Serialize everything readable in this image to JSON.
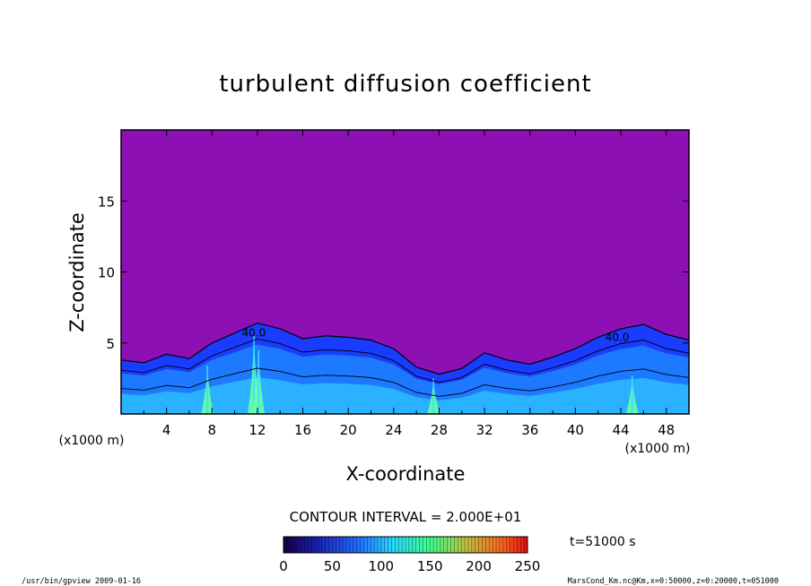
{
  "chart_data": {
    "type": "heatmap",
    "title": "turbulent diffusion coefficient",
    "xlabel": "X-coordinate",
    "ylabel": "Z-coordinate",
    "x_unit": "(x1000 m)",
    "y_unit": "(x1000 m)",
    "xlim": [
      0,
      50
    ],
    "ylim": [
      0,
      20
    ],
    "x_ticks": [
      4,
      8,
      12,
      16,
      20,
      24,
      28,
      32,
      36,
      40,
      44,
      48
    ],
    "y_ticks": [
      5,
      10,
      15
    ],
    "contour_interval_text": "CONTOUR INTERVAL = 2.000E+01",
    "contour_labels": [
      "40.0",
      "40.0"
    ],
    "time_label": "t=51000 s",
    "colorbar": {
      "min": 0,
      "max": 250,
      "ticks": [
        0,
        50,
        100,
        150,
        200,
        250
      ]
    },
    "background_value": 0,
    "layer_top_profile": {
      "x": [
        0,
        2,
        4,
        6,
        8,
        10,
        12,
        14,
        16,
        18,
        20,
        22,
        24,
        26,
        28,
        30,
        32,
        34,
        36,
        38,
        40,
        42,
        44,
        46,
        48,
        50
      ],
      "z": [
        3.8,
        3.6,
        4.2,
        3.9,
        5.0,
        5.7,
        6.4,
        6.0,
        5.3,
        5.5,
        5.4,
        5.2,
        4.6,
        3.3,
        2.8,
        3.2,
        4.3,
        3.8,
        3.5,
        4.0,
        4.6,
        5.4,
        6.0,
        6.3,
        5.6,
        5.2
      ]
    },
    "plumes": [
      {
        "x": 7.6,
        "z_top": 3.4,
        "value": 140
      },
      {
        "x": 11.7,
        "z_top": 5.5,
        "value": 150
      },
      {
        "x": 12.1,
        "z_top": 4.5,
        "value": 110
      },
      {
        "x": 27.5,
        "z_top": 2.5,
        "value": 120
      },
      {
        "x": 45.0,
        "z_top": 2.7,
        "value": 130
      }
    ],
    "colors": {
      "background": "#8c10b4",
      "layer_base": "#1a3cff",
      "layer_mid": "#1f84ff",
      "layer_high": "#34e0ff",
      "plume": "#6affa3",
      "contour": "#000000"
    }
  },
  "footer": {
    "left": "/usr/bin/gpview   2009-01-16",
    "right": "MarsCond_Km.nc@Km,x=0:50000,z=0:20000,t=051000"
  }
}
